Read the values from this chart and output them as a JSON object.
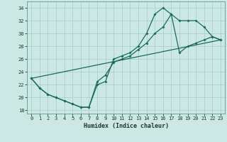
{
  "title": "",
  "xlabel": "Humidex (Indice chaleur)",
  "bg_color": "#cce8e4",
  "grid_color": "#aacfcb",
  "line_color": "#1a6b5a",
  "xlim": [
    -0.5,
    23.5
  ],
  "ylim": [
    17.5,
    35.0
  ],
  "xticks": [
    0,
    1,
    2,
    3,
    4,
    5,
    6,
    7,
    8,
    9,
    10,
    11,
    12,
    13,
    14,
    15,
    16,
    17,
    18,
    19,
    20,
    21,
    22,
    23
  ],
  "yticks": [
    18,
    20,
    22,
    24,
    26,
    28,
    30,
    32,
    34
  ],
  "line1_x": [
    0,
    1,
    2,
    3,
    4,
    5,
    6,
    7,
    8,
    9,
    10,
    11,
    12,
    13,
    14,
    15,
    16,
    17,
    18,
    19,
    20,
    21,
    22,
    23
  ],
  "line1_y": [
    23,
    21.5,
    20.5,
    20.0,
    19.5,
    19.0,
    18.5,
    18.5,
    22.5,
    23.5,
    25.5,
    26.0,
    26.5,
    27.5,
    28.5,
    30.0,
    31.0,
    33.0,
    27.0,
    28.0,
    28.5,
    29.0,
    29.5,
    29.0
  ],
  "line2_x": [
    0,
    1,
    2,
    3,
    4,
    5,
    6,
    7,
    8,
    9,
    10,
    11,
    12,
    13,
    14,
    15,
    16,
    17,
    18,
    19,
    20,
    21,
    22,
    23
  ],
  "line2_y": [
    23,
    21.5,
    20.5,
    20.0,
    19.5,
    19.0,
    18.5,
    18.5,
    22.0,
    22.5,
    26.0,
    26.5,
    27.0,
    28.0,
    30.0,
    33.0,
    34.0,
    33.0,
    32.0,
    32.0,
    32.0,
    31.0,
    29.5,
    29.0
  ],
  "line3_x": [
    0,
    23
  ],
  "line3_y": [
    23,
    29.0
  ]
}
